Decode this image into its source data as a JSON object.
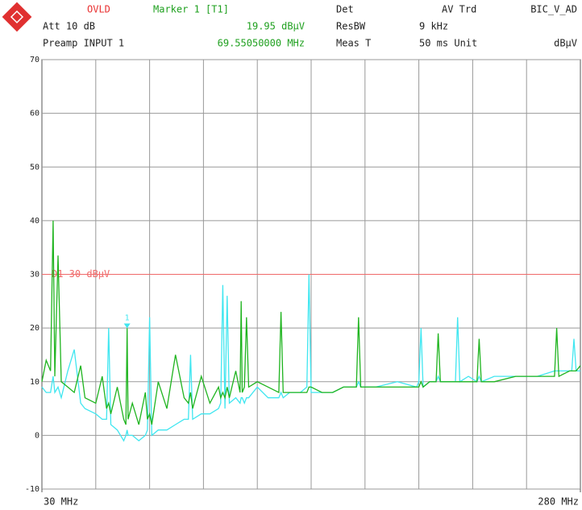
{
  "chart_data": {
    "type": "line",
    "header": {
      "ovld": "OVLD",
      "marker_title": "Marker 1 [T1]",
      "det": "Det",
      "trace_mode": "AV Trd",
      "setup": "BIC_V_AD",
      "att": "Att 10 dB",
      "marker_level": "19.95 dBµV",
      "resbw_label": "ResBW",
      "resbw": "9 kHz",
      "preamp": "Preamp INPUT 1",
      "marker_freq": "69.55050000 MHz",
      "meas_label": "Meas T",
      "meas": "50 ms Unit",
      "unit": "dBµV"
    },
    "x": [
      30,
      32,
      34,
      35.2,
      36,
      37.5,
      39,
      42,
      45,
      48,
      50,
      55,
      58,
      60,
      61,
      62,
      65,
      68,
      69,
      69.55,
      70,
      72,
      75,
      78,
      79,
      80,
      81,
      84,
      88,
      92,
      96,
      98,
      99,
      100,
      104,
      108,
      112,
      113,
      114,
      115,
      116,
      117,
      120,
      122,
      122.5,
      123,
      124,
      125,
      126,
      130,
      135,
      140,
      141,
      142,
      145,
      150,
      153,
      154,
      155,
      160,
      165,
      170,
      175,
      176,
      177,
      178,
      185,
      195,
      204,
      205,
      206,
      207,
      210,
      213,
      214,
      215,
      220,
      222,
      223,
      224,
      228,
      232,
      233,
      234,
      240,
      250,
      260,
      268,
      269,
      270,
      275,
      276,
      277,
      278,
      280
    ],
    "series": [
      {
        "color": "#40e6f0",
        "values": [
          9,
          8,
          8,
          11,
          8,
          9,
          7,
          12,
          16,
          6,
          5,
          4,
          3,
          3,
          20,
          2,
          1,
          -1,
          0,
          1,
          0,
          0,
          -1,
          0,
          1,
          22,
          0,
          1,
          1,
          2,
          3,
          3,
          15,
          3,
          4,
          4,
          5,
          6,
          28,
          5,
          26,
          6,
          7,
          6,
          7,
          7,
          6,
          7,
          7,
          9,
          7,
          7,
          8,
          7,
          8,
          8,
          9,
          30,
          8,
          8,
          8,
          9,
          9,
          9,
          10,
          9,
          9,
          10,
          9,
          10,
          20,
          9,
          10,
          10,
          11,
          10,
          10,
          10,
          22,
          10,
          11,
          10,
          11,
          10,
          11,
          11,
          11,
          12,
          12,
          12,
          12,
          12,
          18,
          12,
          12
        ]
      },
      {
        "color": "#1fb41f",
        "values": [
          10,
          14,
          12,
          40,
          11,
          33.5,
          10,
          9,
          8,
          13,
          7,
          6,
          11,
          5,
          6,
          4,
          9,
          3,
          2,
          19.95,
          3,
          6,
          2,
          8,
          3,
          4,
          2,
          10,
          5,
          15,
          7,
          6,
          8,
          5,
          11,
          6,
          9,
          7,
          8,
          7,
          9,
          7,
          12,
          8,
          25,
          8,
          9,
          22,
          9,
          10,
          9,
          8,
          23,
          8,
          8,
          8,
          8,
          9,
          9,
          8,
          8,
          9,
          9,
          9,
          22,
          9,
          9,
          9,
          9,
          9,
          10,
          9,
          10,
          10,
          19,
          10,
          10,
          10,
          10,
          10,
          10,
          10,
          18,
          10,
          10,
          11,
          11,
          11,
          20,
          11,
          12,
          12,
          12,
          12,
          13
        ]
      }
    ],
    "xlim": [
      30,
      280
    ],
    "xticks": [
      {
        "value": 30,
        "label": "30 MHz"
      },
      {
        "value": 280,
        "label": "280 MHz"
      }
    ],
    "xgrid": [
      55,
      80,
      105,
      130,
      155,
      180,
      205,
      230,
      255
    ],
    "ylim": [
      -10,
      70
    ],
    "yticks": [
      -10,
      0,
      10,
      20,
      30,
      40,
      50,
      60,
      70
    ],
    "grid": true,
    "hlines": [
      {
        "value": 30,
        "label": "D1 30 dBµV",
        "color": "#f06a6a"
      }
    ],
    "marker": {
      "label": "1",
      "x": 69.55,
      "y": 19.95,
      "color": "#40e6f0"
    }
  }
}
